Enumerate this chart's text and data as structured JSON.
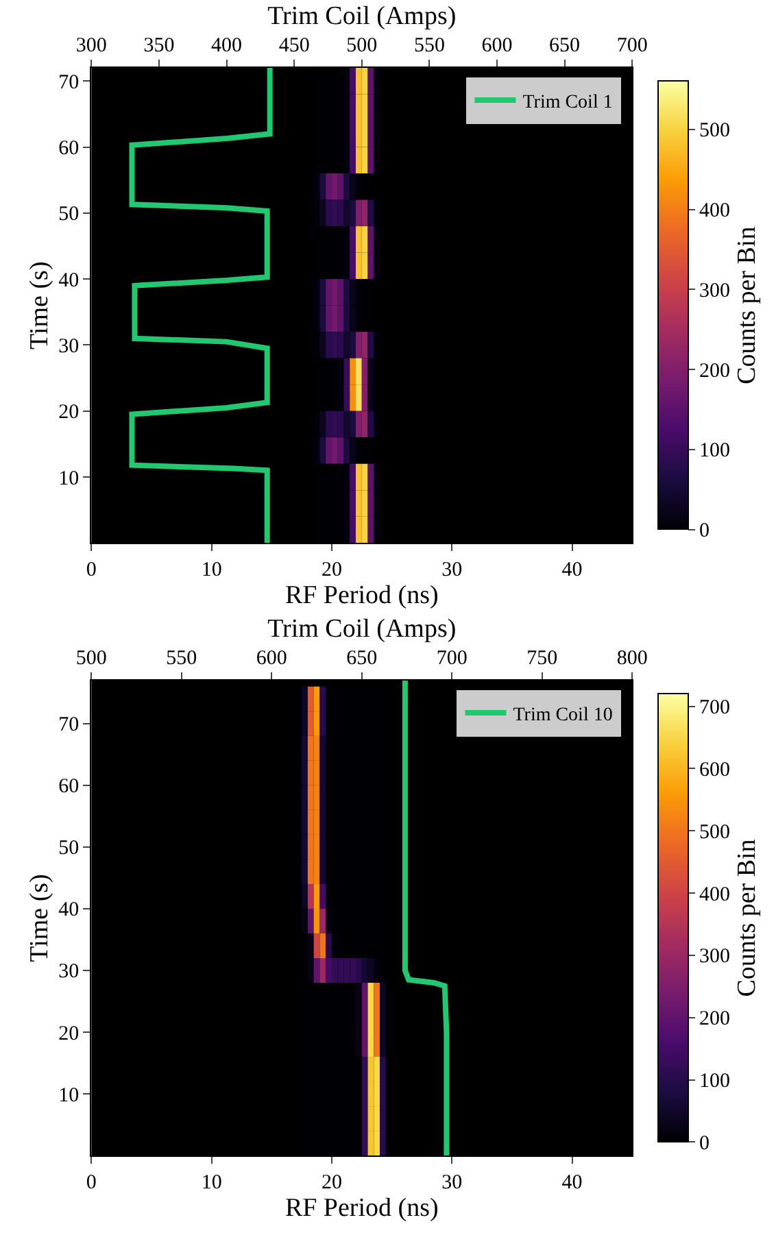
{
  "chart_data": [
    {
      "type": "heatmap",
      "xlabel": "RF Period (ns)",
      "ylabel": "Time (s)",
      "x2label": "Trim Coil (Amps)",
      "clabel": "Counts per Bin",
      "xlim": [
        0,
        45
      ],
      "xticks": [
        0,
        10,
        20,
        30,
        40
      ],
      "ylim": [
        0,
        72
      ],
      "yticks": [
        10,
        20,
        30,
        40,
        50,
        60,
        70
      ],
      "x2lim": [
        300,
        700
      ],
      "x2ticks": [
        300,
        350,
        400,
        450,
        500,
        550,
        600,
        650,
        700
      ],
      "clim": [
        0,
        560
      ],
      "cticks": [
        0,
        100,
        200,
        300,
        400,
        500
      ],
      "grid": false,
      "legend": "top right",
      "x": [
        18.25,
        18.75,
        19.25,
        19.75,
        20.25,
        20.75,
        21.25,
        21.75,
        22.25,
        22.75,
        23.25,
        23.75
      ],
      "y": [
        70,
        66,
        62,
        58,
        54,
        50,
        46,
        42,
        38,
        34,
        30,
        26,
        22,
        18,
        14,
        10,
        6,
        2
      ],
      "cells": [
        [
          0,
          0,
          0,
          0,
          0,
          0,
          10,
          120,
          480,
          500,
          150,
          10
        ],
        [
          0,
          0,
          0,
          0,
          0,
          0,
          10,
          120,
          480,
          500,
          150,
          10
        ],
        [
          0,
          0,
          0,
          0,
          0,
          0,
          10,
          120,
          480,
          500,
          150,
          10
        ],
        [
          0,
          0,
          0,
          0,
          0,
          0,
          10,
          120,
          480,
          500,
          150,
          10
        ],
        [
          0,
          10,
          60,
          160,
          180,
          150,
          60,
          20,
          0,
          0,
          0,
          0
        ],
        [
          0,
          5,
          30,
          80,
          90,
          80,
          40,
          60,
          200,
          220,
          70,
          5
        ],
        [
          0,
          0,
          0,
          0,
          0,
          0,
          10,
          120,
          480,
          500,
          150,
          10
        ],
        [
          0,
          0,
          0,
          0,
          0,
          0,
          10,
          120,
          480,
          500,
          150,
          10
        ],
        [
          0,
          10,
          60,
          160,
          180,
          150,
          60,
          20,
          0,
          0,
          0,
          0
        ],
        [
          0,
          10,
          60,
          160,
          180,
          150,
          60,
          20,
          0,
          0,
          0,
          0
        ],
        [
          0,
          5,
          30,
          80,
          90,
          80,
          40,
          60,
          200,
          220,
          70,
          5
        ],
        [
          0,
          0,
          0,
          0,
          0,
          10,
          100,
          420,
          520,
          200,
          20,
          0
        ],
        [
          0,
          0,
          0,
          0,
          0,
          10,
          100,
          420,
          520,
          200,
          20,
          0
        ],
        [
          0,
          5,
          30,
          80,
          90,
          80,
          40,
          60,
          200,
          220,
          70,
          5
        ],
        [
          0,
          10,
          60,
          160,
          180,
          150,
          60,
          20,
          0,
          0,
          0,
          0
        ],
        [
          0,
          0,
          0,
          0,
          0,
          0,
          10,
          120,
          480,
          500,
          150,
          10
        ],
        [
          0,
          0,
          0,
          0,
          0,
          0,
          10,
          120,
          480,
          500,
          150,
          10
        ],
        [
          0,
          0,
          0,
          0,
          0,
          0,
          10,
          120,
          480,
          500,
          150,
          10
        ]
      ],
      "series": [
        {
          "name": "Trim Coil 1",
          "type": "line",
          "axis": "x2",
          "color": "#22c76f",
          "x": [
            430,
            430,
            405,
            330,
            330,
            400,
            430,
            430,
            400,
            332,
            332,
            400,
            430,
            430,
            400,
            330,
            330,
            400,
            432,
            432
          ],
          "values": [
            0,
            11,
            11.3,
            11.8,
            19.5,
            20.5,
            21.3,
            29.5,
            30.5,
            31,
            39,
            39.8,
            40.3,
            50.3,
            50.8,
            51.3,
            60.3,
            61.3,
            62,
            72
          ]
        }
      ]
    },
    {
      "type": "heatmap",
      "xlabel": "RF Period (ns)",
      "ylabel": "Time (s)",
      "x2label": "Trim Coil (Amps)",
      "clabel": "Counts per Bin",
      "xlim": [
        0,
        45
      ],
      "xticks": [
        0,
        10,
        20,
        30,
        40
      ],
      "ylim": [
        0,
        77
      ],
      "yticks": [
        10,
        20,
        30,
        40,
        50,
        60,
        70
      ],
      "x2lim": [
        500,
        800
      ],
      "x2ticks": [
        500,
        550,
        600,
        650,
        700,
        750,
        800
      ],
      "clim": [
        0,
        720
      ],
      "cticks": [
        0,
        100,
        200,
        300,
        400,
        500,
        600,
        700
      ],
      "grid": false,
      "legend": "top right",
      "x": [
        17.25,
        17.75,
        18.25,
        18.75,
        19.25,
        19.75,
        20.25,
        20.75,
        21.25,
        21.75,
        22.25,
        22.75,
        23.25,
        23.75,
        24.25,
        24.75
      ],
      "y": [
        74,
        70,
        66,
        62,
        58,
        54,
        50,
        46,
        42,
        38,
        34,
        30,
        26,
        22,
        18,
        14,
        10,
        6,
        2
      ],
      "cells": [
        [
          0,
          40,
          450,
          560,
          100,
          0,
          0,
          0,
          0,
          0,
          0,
          0,
          0,
          0,
          0,
          0
        ],
        [
          0,
          40,
          450,
          560,
          100,
          0,
          0,
          0,
          0,
          0,
          0,
          0,
          0,
          0,
          0,
          0
        ],
        [
          0,
          60,
          500,
          520,
          60,
          0,
          0,
          0,
          0,
          0,
          0,
          0,
          0,
          0,
          0,
          0
        ],
        [
          0,
          60,
          500,
          520,
          60,
          0,
          0,
          0,
          0,
          0,
          0,
          0,
          0,
          0,
          0,
          0
        ],
        [
          0,
          60,
          500,
          520,
          60,
          0,
          0,
          0,
          0,
          0,
          0,
          0,
          0,
          0,
          0,
          0
        ],
        [
          0,
          60,
          500,
          520,
          60,
          0,
          0,
          0,
          0,
          0,
          0,
          0,
          0,
          0,
          0,
          0
        ],
        [
          0,
          60,
          500,
          520,
          60,
          0,
          0,
          0,
          0,
          0,
          0,
          0,
          0,
          0,
          0,
          0
        ],
        [
          0,
          60,
          500,
          520,
          60,
          0,
          0,
          0,
          0,
          0,
          0,
          0,
          0,
          0,
          0,
          0
        ],
        [
          0,
          40,
          350,
          560,
          150,
          0,
          0,
          0,
          0,
          0,
          0,
          0,
          0,
          0,
          0,
          0
        ],
        [
          0,
          20,
          200,
          550,
          300,
          20,
          0,
          0,
          0,
          0,
          0,
          0,
          0,
          0,
          0,
          0
        ],
        [
          0,
          0,
          20,
          400,
          500,
          100,
          10,
          0,
          0,
          0,
          0,
          0,
          0,
          0,
          0,
          0
        ],
        [
          0,
          0,
          20,
          200,
          300,
          150,
          120,
          120,
          120,
          120,
          100,
          60,
          40,
          10,
          0,
          0
        ],
        [
          0,
          0,
          0,
          0,
          0,
          0,
          0,
          0,
          0,
          0,
          20,
          200,
          650,
          500,
          40,
          0
        ],
        [
          0,
          0,
          0,
          0,
          0,
          0,
          0,
          0,
          0,
          0,
          20,
          200,
          650,
          500,
          40,
          0
        ],
        [
          0,
          0,
          0,
          0,
          0,
          0,
          0,
          0,
          0,
          0,
          20,
          200,
          650,
          500,
          40,
          0
        ],
        [
          0,
          0,
          0,
          0,
          0,
          0,
          0,
          0,
          0,
          0,
          0,
          120,
          620,
          650,
          100,
          0
        ],
        [
          0,
          0,
          0,
          0,
          0,
          0,
          0,
          0,
          0,
          0,
          0,
          120,
          620,
          650,
          100,
          0
        ],
        [
          0,
          0,
          0,
          0,
          0,
          0,
          0,
          0,
          0,
          0,
          0,
          120,
          620,
          650,
          100,
          0
        ],
        [
          0,
          0,
          0,
          0,
          0,
          0,
          0,
          0,
          0,
          0,
          0,
          120,
          620,
          650,
          100,
          0
        ]
      ],
      "series": [
        {
          "name": "Trim Coil 10",
          "type": "line",
          "axis": "x2",
          "color": "#22c76f",
          "x": [
            697,
            697,
            696,
            690,
            676,
            674,
            674
          ],
          "values": [
            0,
            20,
            27.5,
            28,
            28.5,
            30,
            77
          ]
        }
      ]
    }
  ]
}
